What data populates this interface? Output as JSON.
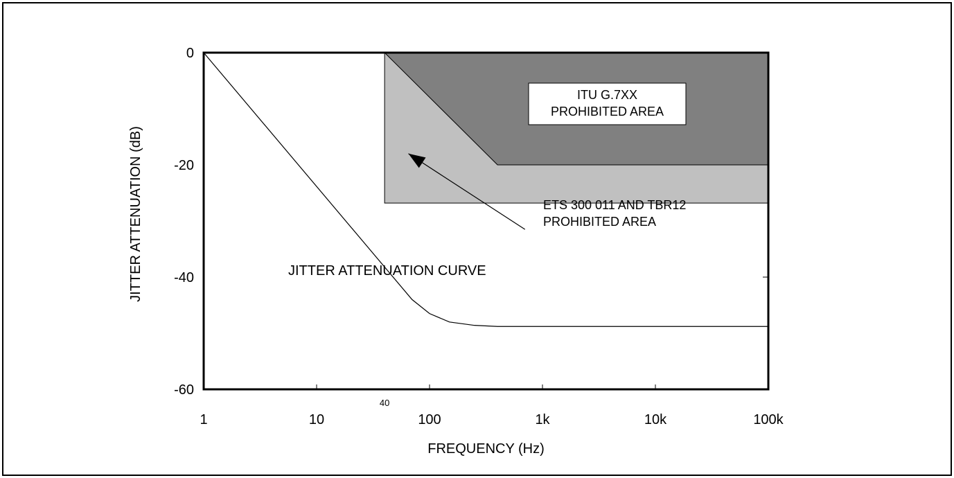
{
  "chart_data": {
    "type": "line",
    "xlabel": "FREQUENCY (Hz)",
    "ylabel": "JITTER ATTENUATION (dB)",
    "x_scale": "log",
    "xlim": [
      1,
      100000
    ],
    "ylim": [
      -60,
      0
    ],
    "x_ticks": [
      {
        "value": 1,
        "label": "1"
      },
      {
        "value": 10,
        "label": "10"
      },
      {
        "value": 100,
        "label": "100"
      },
      {
        "value": 1000,
        "label": "1k"
      },
      {
        "value": 10000,
        "label": "10k"
      },
      {
        "value": 100000,
        "label": "100k"
      }
    ],
    "x_marker": {
      "value": 40,
      "label": "40"
    },
    "y_ticks": [
      {
        "value": 0,
        "label": "0"
      },
      {
        "value": -20,
        "label": "-20"
      },
      {
        "value": -40,
        "label": "-40"
      },
      {
        "value": -60,
        "label": "-60"
      }
    ],
    "series": [
      {
        "name": "JITTER ATTENUATION CURVE",
        "points": [
          {
            "x": 1,
            "y": 0
          },
          {
            "x": 70,
            "y": -44
          },
          {
            "x": 100,
            "y": -46.5
          },
          {
            "x": 150,
            "y": -48
          },
          {
            "x": 250,
            "y": -48.6
          },
          {
            "x": 400,
            "y": -48.8
          },
          {
            "x": 100000,
            "y": -48.8
          }
        ]
      }
    ],
    "regions": [
      {
        "label_lines": [
          "ETS 300 011 AND TBR12",
          "PROHIBITED AREA"
        ],
        "color": "#c0c0c0",
        "points": [
          {
            "x": 40,
            "y": 0
          },
          {
            "x": 100000,
            "y": 0
          },
          {
            "x": 100000,
            "y": -26.8
          },
          {
            "x": 40,
            "y": -26.8
          }
        ]
      },
      {
        "label_lines": [
          "ITU G.7XX",
          "PROHIBITED AREA"
        ],
        "color": "#808080",
        "points": [
          {
            "x": 40,
            "y": 0
          },
          {
            "x": 100000,
            "y": 0
          },
          {
            "x": 100000,
            "y": -20
          },
          {
            "x": 400,
            "y": -20
          }
        ]
      }
    ],
    "annotations": {
      "curve_label": "JITTER ATTENUATION CURVE",
      "curve_label_at": {
        "x": 500,
        "y": -43.5
      },
      "ets_label_at": {
        "x": 1100,
        "y": -31
      },
      "itu_label_at": {
        "x": 2500,
        "y": -10
      },
      "arrow_from": {
        "x": 700,
        "y": -31.5
      },
      "arrow_to": {
        "x": 65,
        "y": -18
      }
    }
  }
}
